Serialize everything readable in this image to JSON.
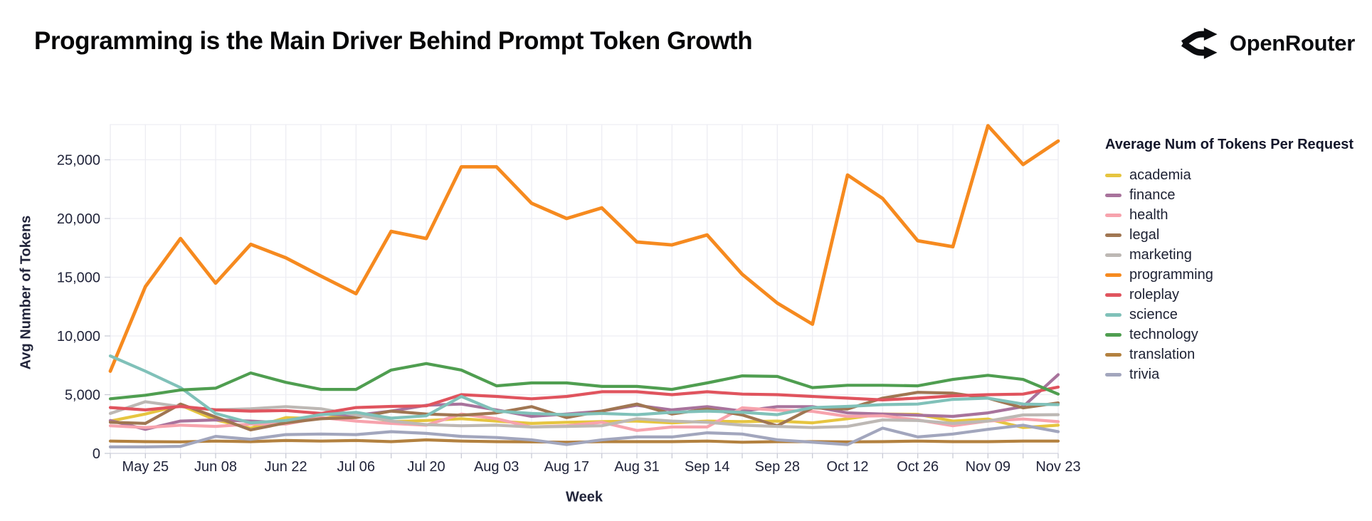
{
  "header": {
    "title": "Programming is the Main Driver Behind Prompt Token Growth",
    "brand": "OpenRouter"
  },
  "chart_data": {
    "type": "line",
    "xlabel": "Week",
    "ylabel": "Avg Number of Tokens",
    "legend_title": "Average Num of Tokens Per Request",
    "legend_position": "right",
    "grid": true,
    "ylim": [
      0,
      28000
    ],
    "y_ticks": [
      0,
      5000,
      10000,
      15000,
      20000,
      25000
    ],
    "x": [
      "May 18",
      "May 25",
      "Jun 01",
      "Jun 08",
      "Jun 15",
      "Jun 22",
      "Jun 29",
      "Jul 06",
      "Jul 13",
      "Jul 20",
      "Jul 27",
      "Aug 03",
      "Aug 10",
      "Aug 17",
      "Aug 24",
      "Aug 31",
      "Sep 07",
      "Sep 14",
      "Sep 21",
      "Sep 28",
      "Oct 05",
      "Oct 12",
      "Oct 19",
      "Oct 26",
      "Nov 02",
      "Nov 09",
      "Nov 16",
      "Nov 23"
    ],
    "x_labeled_ticks": [
      "May 25",
      "Jun 08",
      "Jun 22",
      "Jul 06",
      "Jul 20",
      "Aug 03",
      "Aug 17",
      "Aug 31",
      "Sep 14",
      "Sep 28",
      "Oct 12",
      "Oct 26",
      "Nov 09",
      "Nov 23"
    ],
    "series": [
      {
        "name": "academia",
        "color": "#e6c540",
        "values": [
          2750,
          3350,
          4100,
          2850,
          2150,
          3050,
          2950,
          3350,
          2700,
          2800,
          2950,
          2750,
          2550,
          2650,
          2700,
          2750,
          2600,
          2750,
          2700,
          2750,
          2600,
          2950,
          3350,
          3330,
          2750,
          2930,
          2200,
          2400
        ]
      },
      {
        "name": "finance",
        "color": "#a8739c",
        "values": [
          2800,
          2050,
          2750,
          2850,
          2750,
          2600,
          3350,
          3250,
          3600,
          4100,
          4200,
          3700,
          3150,
          3350,
          3600,
          4100,
          3700,
          3980,
          3600,
          3980,
          3980,
          3450,
          3350,
          3250,
          3150,
          3450,
          3980,
          6700
        ]
      },
      {
        "name": "health",
        "color": "#f7a3ad",
        "values": [
          2350,
          2200,
          2400,
          2300,
          2500,
          2500,
          3050,
          2750,
          2550,
          2400,
          3350,
          2950,
          2250,
          2350,
          2650,
          1950,
          2250,
          2250,
          3880,
          3680,
          3580,
          3150,
          3200,
          2850,
          2350,
          2750,
          2930,
          2700
        ]
      },
      {
        "name": "legal",
        "color": "#a07652",
        "values": [
          2650,
          2550,
          4200,
          3100,
          2000,
          2600,
          2950,
          3050,
          3600,
          3350,
          3250,
          3450,
          3980,
          3050,
          3600,
          4200,
          3350,
          3780,
          3270,
          2350,
          3880,
          3780,
          4700,
          5200,
          5130,
          4700,
          3880,
          4300
        ]
      },
      {
        "name": "marketing",
        "color": "#bdb8b4",
        "values": [
          3400,
          4400,
          3980,
          3700,
          3800,
          3980,
          3800,
          3270,
          2750,
          2450,
          2350,
          2400,
          2250,
          2300,
          2350,
          2950,
          2750,
          2650,
          2400,
          2300,
          2200,
          2300,
          2850,
          2800,
          2550,
          2750,
          3270,
          3300
        ]
      },
      {
        "name": "programming",
        "color": "#f68a1f",
        "values": [
          7000,
          14200,
          18300,
          14500,
          17800,
          16650,
          15100,
          13600,
          18900,
          18300,
          24400,
          24400,
          21300,
          20000,
          20900,
          18000,
          17750,
          18600,
          15250,
          12800,
          11000,
          23700,
          21700,
          18100,
          17600,
          27900,
          24600,
          26600
        ]
      },
      {
        "name": "roleplay",
        "color": "#e0545e",
        "values": [
          3900,
          3700,
          4000,
          3700,
          3600,
          3650,
          3400,
          3900,
          4000,
          4050,
          5000,
          4850,
          4650,
          4850,
          5250,
          5250,
          5000,
          5250,
          5050,
          5000,
          4850,
          4700,
          4550,
          4700,
          4900,
          5000,
          5050,
          5650
        ]
      },
      {
        "name": "science",
        "color": "#80c1b9",
        "values": [
          8300,
          7000,
          5600,
          3400,
          2600,
          2800,
          3300,
          3500,
          3000,
          3200,
          4850,
          3600,
          3400,
          3300,
          3400,
          3300,
          3500,
          3600,
          3500,
          3300,
          3900,
          4000,
          4150,
          4200,
          4600,
          4700,
          4200,
          4150
        ]
      },
      {
        "name": "technology",
        "color": "#4f9e50",
        "values": [
          4650,
          4950,
          5400,
          5550,
          6850,
          6050,
          5450,
          5450,
          7100,
          7650,
          7100,
          5750,
          6000,
          6000,
          5700,
          5700,
          5450,
          6000,
          6600,
          6550,
          5600,
          5800,
          5800,
          5750,
          6300,
          6650,
          6300,
          5050
        ]
      },
      {
        "name": "translation",
        "color": "#b3813f",
        "values": [
          1050,
          1000,
          980,
          1050,
          1000,
          1100,
          1050,
          1100,
          1000,
          1150,
          1050,
          1000,
          980,
          950,
          1000,
          1000,
          1000,
          1050,
          950,
          1000,
          1000,
          980,
          1000,
          1050,
          1000,
          1000,
          1050,
          1050
        ]
      },
      {
        "name": "trivia",
        "color": "#a2a6bd",
        "values": [
          550,
          550,
          600,
          1450,
          1200,
          1600,
          1650,
          1600,
          1850,
          1700,
          1450,
          1350,
          1150,
          750,
          1150,
          1400,
          1400,
          1750,
          1650,
          1150,
          950,
          750,
          2150,
          1400,
          1650,
          2050,
          2400,
          1850
        ]
      }
    ],
    "style": {
      "grid_color": "#ededf3",
      "axis_line_color": "#d9dbe4",
      "tick_color": "#c9cbd6",
      "text_color": "#21243a"
    }
  }
}
